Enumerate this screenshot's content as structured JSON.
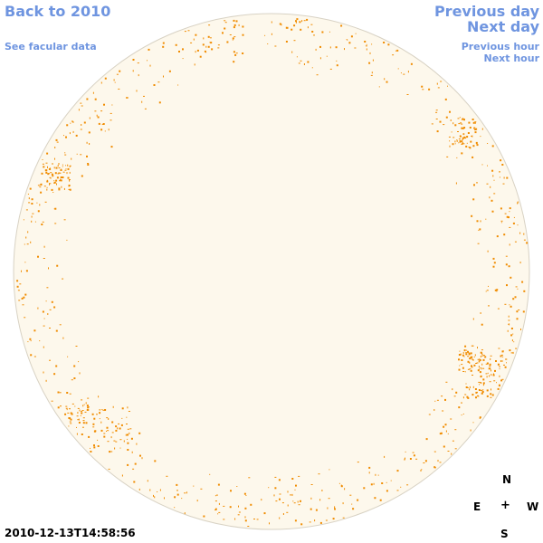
{
  "navigation": {
    "back_label": "Back to 2010",
    "facular_label": "See facular data",
    "prev_day_label": "Previous day",
    "next_day_label": "Next day",
    "prev_hour_label": "Previous hour",
    "next_hour_label": "Next hour"
  },
  "compass": {
    "north": "N",
    "east": "E",
    "center": "+",
    "west": "W",
    "south": "S"
  },
  "timestamp": "2010-12-13T14:58:56",
  "colors": {
    "link": "#6f95e0",
    "disk_fill": "#fdf8ec",
    "disk_stroke": "#d8d2c4",
    "facula": "#f08c00"
  }
}
